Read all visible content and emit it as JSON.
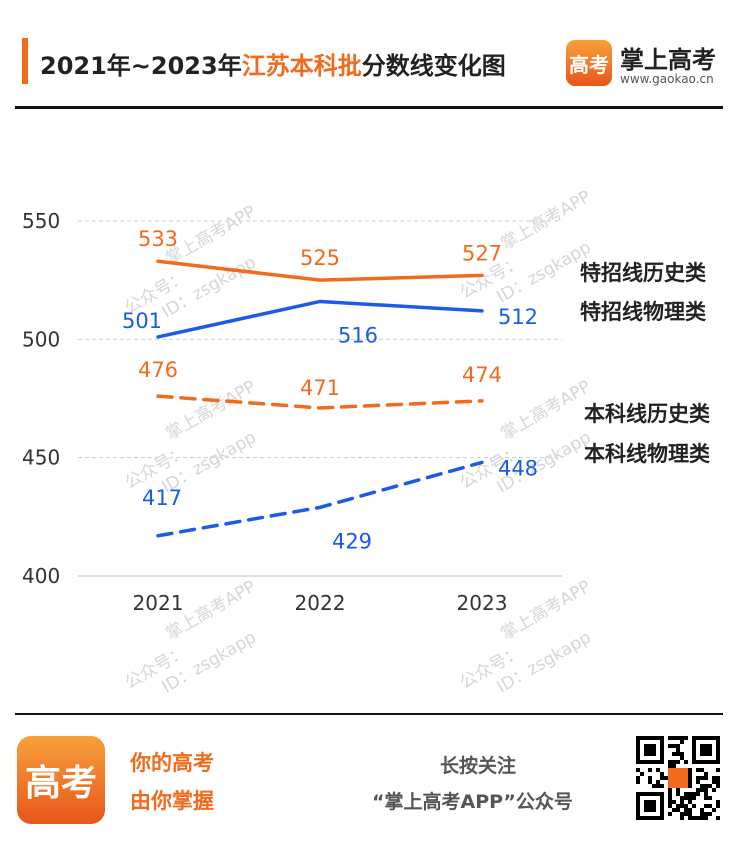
{
  "header": {
    "title_prefix": "2021年~2023年",
    "title_highlight": "江苏本科批",
    "title_suffix": "分数线变化图",
    "logo_text": "高考",
    "brand_name": "掌上高考",
    "brand_url": "www.gaokao.cn"
  },
  "watermark": {
    "line1": "掌上高考APP",
    "line2": "公众号：",
    "line3": "ID：zsgkapp"
  },
  "colors": {
    "orange": "#F26B1D",
    "blue": "#1A5CE8",
    "grid": "#cfcfcf",
    "axis": "#bdbdbd"
  },
  "chart_data": {
    "type": "line",
    "categories": [
      "2021",
      "2022",
      "2023"
    ],
    "ylim": [
      400,
      550
    ],
    "yticks": [
      400,
      450,
      500,
      550
    ],
    "grid": true,
    "legend_position": "right",
    "series": [
      {
        "name": "特招线历史类",
        "values": [
          533,
          525,
          527
        ],
        "color": "#F26B1D",
        "style": "solid"
      },
      {
        "name": "特招线物理类",
        "values": [
          501,
          516,
          512
        ],
        "color": "#1A5CE8",
        "style": "solid"
      },
      {
        "name": "本科线历史类",
        "values": [
          476,
          471,
          474
        ],
        "color": "#F26B1D",
        "style": "dashed"
      },
      {
        "name": "本科线物理类",
        "values": [
          417,
          429,
          448
        ],
        "color": "#1A5CE8",
        "style": "dashed"
      }
    ]
  },
  "footer": {
    "logo_text": "高考",
    "slogan_line1": "你的高考",
    "slogan_line2": "由你掌握",
    "follow_line1": "长按关注",
    "follow_line2": "“掌上高考APP”公众号",
    "qr_label": "qr-code"
  }
}
